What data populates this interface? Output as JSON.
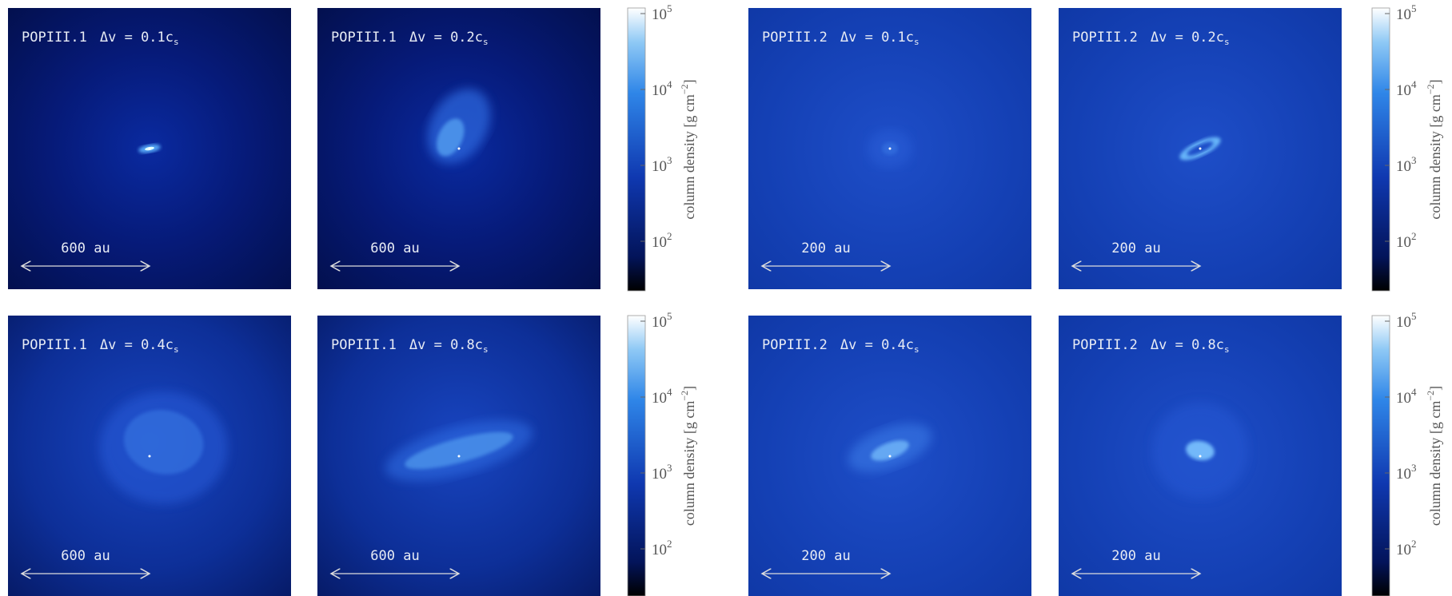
{
  "panels": [
    {
      "model": "POPIII.1",
      "dv": "Δv = 0.1c",
      "dv_sub": "s",
      "scale": "600 au"
    },
    {
      "model": "POPIII.1",
      "dv": "Δv = 0.2c",
      "dv_sub": "s",
      "scale": "600 au"
    },
    {
      "model": "POPIII.2",
      "dv": "Δv = 0.1c",
      "dv_sub": "s",
      "scale": "200 au"
    },
    {
      "model": "POPIII.2",
      "dv": "Δv = 0.2c",
      "dv_sub": "s",
      "scale": "200 au"
    },
    {
      "model": "POPIII.1",
      "dv": "Δv = 0.4c",
      "dv_sub": "s",
      "scale": "600 au"
    },
    {
      "model": "POPIII.1",
      "dv": "Δv = 0.8c",
      "dv_sub": "s",
      "scale": "600 au"
    },
    {
      "model": "POPIII.2",
      "dv": "Δv = 0.4c",
      "dv_sub": "s",
      "scale": "200 au"
    },
    {
      "model": "POPIII.2",
      "dv": "Δv = 0.8c",
      "dv_sub": "s",
      "scale": "200 au"
    }
  ],
  "colorbar": {
    "ticks": [
      {
        "base": "10",
        "exp": "5"
      },
      {
        "base": "10",
        "exp": "4"
      },
      {
        "base": "10",
        "exp": "3"
      },
      {
        "base": "10",
        "exp": "2"
      }
    ],
    "label": "column density [g cm",
    "label_exp": "−2",
    "label_end": "]"
  }
}
